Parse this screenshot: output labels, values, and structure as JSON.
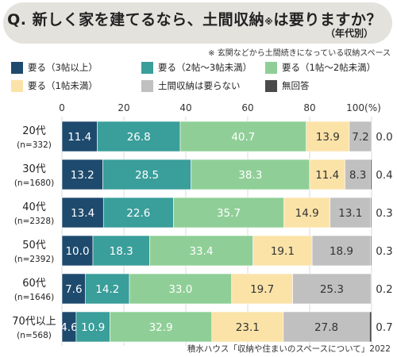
{
  "title": {
    "main": "Q. 新しく家を建てるなら、土間収納",
    "note_mark": "※",
    "suffix": "は要りますか？",
    "subtitle": "（年代別）"
  },
  "footnote": "※ 玄関などから土間続きになっている収納スペース",
  "source": "積水ハウス「収納や住まいのスペースについて」2022",
  "chart_data": {
    "type": "bar",
    "orientation": "horizontal",
    "stacked": true,
    "xlim": [
      0,
      100
    ],
    "x_ticks": [
      "0",
      "20",
      "40",
      "60",
      "80",
      "100(%)"
    ],
    "categories": [
      {
        "label": "20代",
        "n": "(n=332)"
      },
      {
        "label": "30代",
        "n": "(n=1680)"
      },
      {
        "label": "40代",
        "n": "(n=2328)"
      },
      {
        "label": "50代",
        "n": "(n=2392)"
      },
      {
        "label": "60代",
        "n": "(n=1646)"
      },
      {
        "label": "70代以上",
        "n": "(n=568)"
      }
    ],
    "series": [
      {
        "name": "要る（3帖以上）",
        "color": "#1e4a6e",
        "label_color": "#ffffff",
        "values": [
          11.4,
          13.2,
          13.4,
          10.0,
          7.6,
          4.6
        ]
      },
      {
        "name": "要る（2帖～3帖未満）",
        "color": "#3a9e9a",
        "label_color": "#ffffff",
        "values": [
          26.8,
          28.5,
          22.6,
          18.3,
          14.2,
          10.9
        ]
      },
      {
        "name": "要る（1帖～2帖未満）",
        "color": "#8fcf97",
        "label_color": "#ffffff",
        "values": [
          40.7,
          38.3,
          35.7,
          33.4,
          33.0,
          32.9
        ]
      },
      {
        "name": "要る（1帖未満）",
        "color": "#fbe3a8",
        "label_color": "#333333",
        "values": [
          13.9,
          11.4,
          14.9,
          19.1,
          19.7,
          23.1
        ]
      },
      {
        "name": "土間収納は要らない",
        "color": "#c0c0c0",
        "label_color": "#333333",
        "values": [
          7.2,
          8.3,
          13.1,
          18.9,
          25.3,
          27.8
        ]
      },
      {
        "name": "無回答",
        "color": "#4a4a4a",
        "label_color": "#333333",
        "values": [
          0.0,
          0.4,
          0.3,
          0.3,
          0.2,
          0.7
        ]
      }
    ],
    "grid": true
  }
}
